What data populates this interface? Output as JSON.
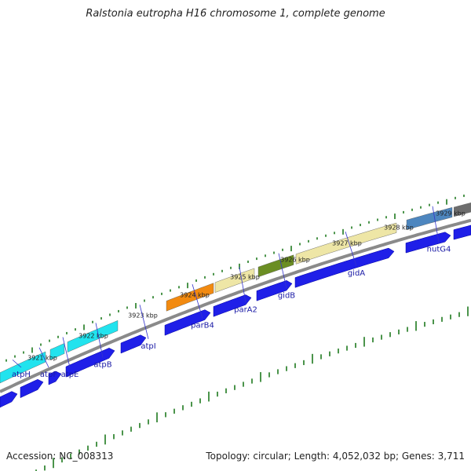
{
  "title": "Ralstonia eutropha H16 chromosome 1, complete genome",
  "footer": {
    "accession": "Accession: NC_008313",
    "summary": "Topology: circular; Length: 4,052,032 bp; Genes: 3,711"
  },
  "colors": {
    "backbone": "#8a8a8a",
    "cds_blue": "#1f1fe8",
    "tick": "#1e7a1e",
    "label_line": "#3333cc"
  },
  "axis_labels": [
    "3921 kbp",
    "3922 kbp",
    "3923 kbp",
    "3924 kbp",
    "3925 kbp",
    "3926 kbp",
    "3927 kbp",
    "3928 kbp",
    "3929 kbp"
  ],
  "genes": [
    {
      "name": "atpH",
      "color": "#22e3ee"
    },
    {
      "name": "atpF",
      "color": "#22e3ee"
    },
    {
      "name": "atpE",
      "color": "#22e3ee"
    },
    {
      "name": "atpB",
      "color": "#22e3ee"
    },
    {
      "name": "atpI",
      "color": ""
    },
    {
      "name": "parB4",
      "color": "#f28a10"
    },
    {
      "name": "parA2",
      "color": "#eee6a6"
    },
    {
      "name": "gidB",
      "color": "#6b8e23"
    },
    {
      "name": "gidA",
      "color": "#eee6a6"
    },
    {
      "name": "hutG4",
      "color": "#4d86bf"
    }
  ]
}
